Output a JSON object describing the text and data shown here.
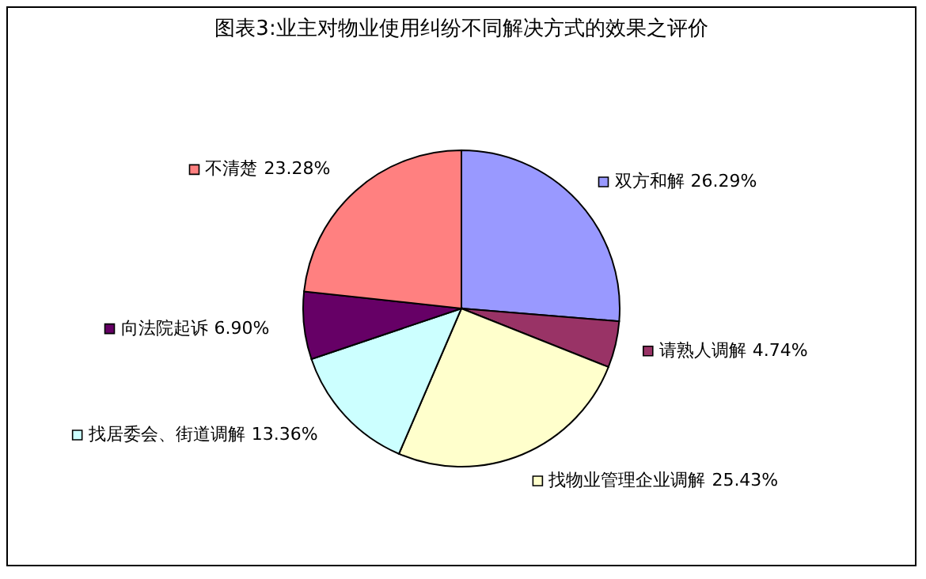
{
  "chart_data": {
    "type": "pie",
    "title": "图表3:业主对物业使用纠纷不同解决方式的效果之评价",
    "categories": [
      "双方和解",
      "请熟人调解",
      "找物业管理企业调解",
      "找居委会、街道调解",
      "向法院起诉",
      "不清楚"
    ],
    "values": [
      26.29,
      4.74,
      25.43,
      13.36,
      6.9,
      23.28
    ],
    "colors": [
      "#9999ff",
      "#993366",
      "#ffffcc",
      "#ccffff",
      "#660066",
      "#ff8080"
    ],
    "value_labels": [
      "26.29%",
      "4.74%",
      "25.43%",
      "13.36%",
      "6.90%",
      "23.28%"
    ],
    "legend": "bottom left"
  }
}
